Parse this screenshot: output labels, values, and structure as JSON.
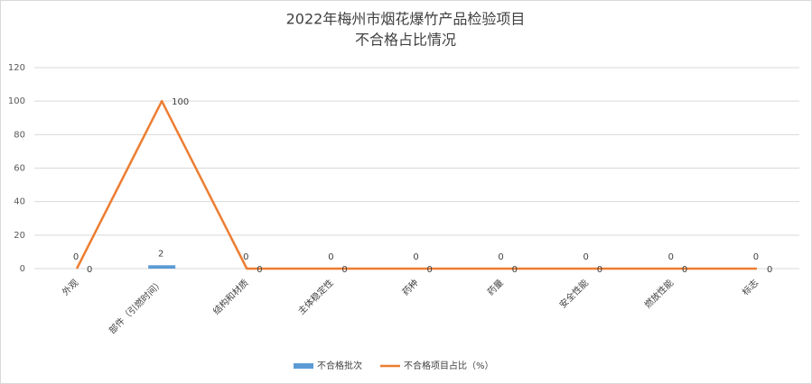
{
  "chart_data": {
    "type": "combo",
    "title": "2022年梅州市烟花爆竹产品检验项目",
    "subtitle": "不合格占比情况",
    "categories": [
      "外观",
      "部件（引燃时间）",
      "结构和材质",
      "主体稳定性",
      "药种",
      "药量",
      "安全性能",
      "燃放性能",
      "标志"
    ],
    "series": [
      {
        "name": "不合格批次",
        "type": "bar",
        "color": "#5b9bd5",
        "values": [
          0,
          2,
          0,
          0,
          0,
          0,
          0,
          0,
          0
        ]
      },
      {
        "name": "不合格项目占比（%）",
        "type": "line",
        "color": "#ed7d31",
        "values": [
          0,
          100,
          0,
          0,
          0,
          0,
          0,
          0,
          0
        ]
      }
    ],
    "ylim": [
      0,
      120
    ],
    "yticks": [
      0,
      20,
      40,
      60,
      80,
      100,
      120
    ],
    "grid": true,
    "legend": "bottom"
  }
}
